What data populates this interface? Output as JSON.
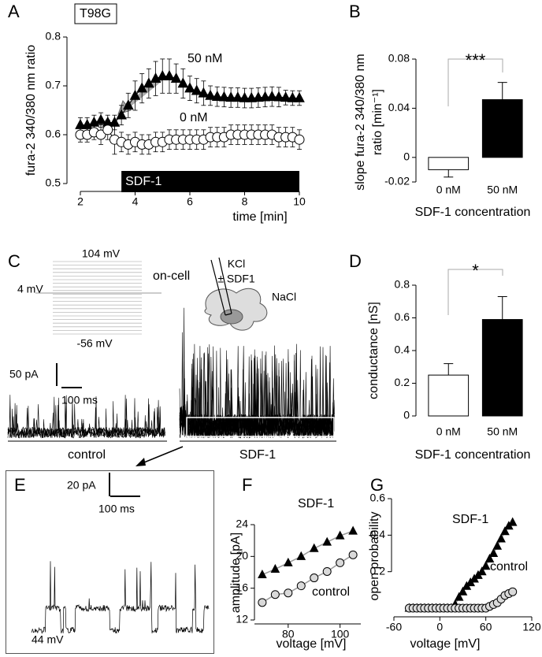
{
  "chart_data": [
    {
      "type": "line",
      "panel": "A",
      "tag": "T98G",
      "xlabel": "time [min]",
      "ylabel": "fura-2 340/380 nm ratio",
      "xlim": [
        2,
        10
      ],
      "xticks": [
        2,
        4,
        6,
        8,
        10
      ],
      "ylim": [
        0.5,
        0.8
      ],
      "yticks": [
        0.5,
        0.6,
        0.7,
        0.8
      ],
      "x": [
        2,
        2.25,
        2.5,
        2.75,
        3,
        3.25,
        3.5,
        3.75,
        4,
        4.25,
        4.5,
        4.75,
        5,
        5.25,
        5.5,
        5.75,
        6,
        6.25,
        6.5,
        6.75,
        7,
        7.25,
        7.5,
        7.75,
        8,
        8.25,
        8.5,
        8.75,
        9,
        9.25,
        9.5,
        9.75,
        10
      ],
      "series": [
        {
          "name": "50 nM",
          "marker": "triangle",
          "color": "#000000",
          "values": [
            0.62,
            0.62,
            0.625,
            0.63,
            0.625,
            0.625,
            0.64,
            0.66,
            0.68,
            0.695,
            0.705,
            0.715,
            0.72,
            0.72,
            0.715,
            0.705,
            0.695,
            0.69,
            0.685,
            0.68,
            0.678,
            0.677,
            0.676,
            0.676,
            0.675,
            0.675,
            0.676,
            0.677,
            0.678,
            0.677,
            0.676,
            0.675,
            0.675
          ],
          "errors": [
            0.015,
            0.015,
            0.015,
            0.015,
            0.015,
            0.015,
            0.02,
            0.025,
            0.03,
            0.03,
            0.03,
            0.035,
            0.035,
            0.035,
            0.03,
            0.03,
            0.025,
            0.025,
            0.025,
            0.02,
            0.02,
            0.02,
            0.02,
            0.02,
            0.02,
            0.02,
            0.02,
            0.02,
            0.02,
            0.02,
            0.015,
            0.015,
            0.015
          ]
        },
        {
          "name": "0 nM",
          "marker": "circle",
          "color": "#ffffff",
          "values": [
            0.6,
            0.6,
            0.605,
            0.6,
            0.61,
            0.59,
            0.585,
            0.58,
            0.585,
            0.58,
            0.58,
            0.585,
            0.585,
            0.59,
            0.59,
            0.59,
            0.59,
            0.59,
            0.59,
            0.595,
            0.595,
            0.595,
            0.6,
            0.6,
            0.6,
            0.6,
            0.6,
            0.6,
            0.6,
            0.595,
            0.595,
            0.595,
            0.59
          ],
          "errors": [
            0.015,
            0.015,
            0.015,
            0.02,
            0.02,
            0.03,
            0.02,
            0.02,
            0.02,
            0.02,
            0.02,
            0.02,
            0.02,
            0.02,
            0.02,
            0.02,
            0.02,
            0.02,
            0.02,
            0.02,
            0.02,
            0.02,
            0.02,
            0.02,
            0.02,
            0.02,
            0.02,
            0.02,
            0.02,
            0.02,
            0.02,
            0.02,
            0.02
          ]
        }
      ],
      "stimulus": {
        "label": "SDF-1",
        "start": 3.5,
        "end": 10
      }
    },
    {
      "type": "bar",
      "panel": "B",
      "ylabel": [
        "slope fura-2 340/380 nm",
        "ratio [min⁻¹]"
      ],
      "xlabel": "SDF-1 concentration",
      "categories": [
        "0 nM",
        "50 nM"
      ],
      "values": [
        -0.01,
        0.047
      ],
      "errors": [
        0.006,
        0.014
      ],
      "colors": [
        "#ffffff",
        "#000000"
      ],
      "ylim": [
        -0.02,
        0.08
      ],
      "yticks": [
        -0.02,
        0,
        0.04,
        0.08
      ],
      "significance": "***"
    },
    {
      "type": "bar",
      "panel": "D",
      "ylabel": [
        "conductance [nS]"
      ],
      "xlabel": "SDF-1 concentration",
      "categories": [
        "0 nM",
        "50 nM"
      ],
      "values": [
        0.25,
        0.59
      ],
      "errors": [
        0.07,
        0.14
      ],
      "colors": [
        "#ffffff",
        "#000000"
      ],
      "ylim": [
        0,
        0.8
      ],
      "yticks": [
        0,
        0.2,
        0.4,
        0.6,
        0.8
      ],
      "significance": "*"
    },
    {
      "type": "scatter",
      "panel": "F",
      "xlabel": "voltage [mV]",
      "ylabel": "amplitude [pA]",
      "xlim": [
        67,
        108
      ],
      "xticks": [
        80,
        100
      ],
      "ylim": [
        12,
        24
      ],
      "yticks": [
        12,
        16,
        20,
        24
      ],
      "x": [
        70,
        75,
        80,
        85,
        90,
        95,
        100,
        105
      ],
      "series": [
        {
          "name": "SDF-1",
          "marker": "triangle",
          "color": "#000000",
          "values": [
            17.7,
            18.4,
            19.2,
            20,
            21,
            21.8,
            22.6,
            23.2
          ]
        },
        {
          "name": "control",
          "marker": "circle",
          "color": "#d9d9d9",
          "values": [
            14.2,
            15.2,
            15.4,
            16.3,
            17.3,
            18.1,
            19.2,
            20.2
          ]
        }
      ]
    },
    {
      "type": "scatter",
      "panel": "G",
      "xlabel": "voltage [mV]",
      "ylabel": "open probability",
      "xlim": [
        -60,
        120
      ],
      "xticks": [
        -60,
        0,
        60,
        120
      ],
      "ylim": [
        -0.03,
        0.6
      ],
      "yticks": [
        0.2,
        0.4,
        0.6
      ],
      "x": [
        -40,
        -35,
        -30,
        -25,
        -20,
        -15,
        -10,
        -5,
        0,
        5,
        10,
        15,
        20,
        25,
        30,
        35,
        40,
        45,
        50,
        55,
        60,
        65,
        70,
        75,
        80,
        85,
        90,
        95
      ],
      "series": [
        {
          "name": "SDF-1",
          "marker": "triangle",
          "color": "#000000",
          "values": [
            0,
            0,
            0,
            0,
            0,
            0,
            0,
            0,
            0,
            0,
            0,
            0,
            0.02,
            0.06,
            0.09,
            0.12,
            0.14,
            0.16,
            0.18,
            0.2,
            0.23,
            0.27,
            0.3,
            0.34,
            0.38,
            0.42,
            0.45,
            0.47
          ]
        },
        {
          "name": "control",
          "marker": "circle",
          "color": "#d9d9d9",
          "values": [
            0,
            0,
            0,
            0,
            0,
            0,
            0,
            0,
            0,
            0,
            0,
            0,
            0,
            0,
            0,
            0,
            0,
            0,
            0,
            0,
            0,
            0.01,
            0.02,
            0.03,
            0.05,
            0.07,
            0.08,
            0.09
          ]
        }
      ]
    }
  ],
  "panels": {
    "C": {
      "letter": "C",
      "protocol": {
        "top": "104 mV",
        "hold": "4 mV",
        "bottom": "-56 mV"
      },
      "setup": {
        "mode": "on-cell",
        "pipette": [
          "KCl",
          "± SDF1"
        ],
        "bath": "NaCl"
      },
      "scale": {
        "current": "50 pA",
        "time": "100 ms"
      },
      "traces": [
        "control",
        "SDF-1"
      ]
    },
    "E": {
      "letter": "E",
      "scale": {
        "current": "20 pA",
        "time": "100 ms"
      },
      "voltage": "44 mV"
    }
  }
}
